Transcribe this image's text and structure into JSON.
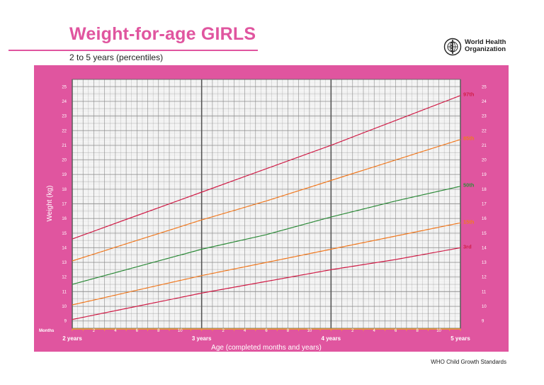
{
  "header": {
    "title": "Weight-for-age GIRLS",
    "subtitle": "2 to 5 years (percentiles)"
  },
  "logo": {
    "name": "World Health Organization",
    "icon": "who-emblem-icon"
  },
  "footer": {
    "text": "WHO Child Growth Standards"
  },
  "colors": {
    "frame": "#e0559f",
    "grid": "#8a8a8a",
    "orange_axis": "#f0a030",
    "p3": "#d01e48",
    "p15": "#f07a22",
    "p50": "#2e8b3a",
    "p85": "#f07a22",
    "p97": "#d01e48"
  },
  "chart_data": {
    "type": "line",
    "title": "Weight-for-age GIRLS",
    "subtitle": "2 to 5 years (percentiles)",
    "xlabel": "Age (completed months and years)",
    "ylabel": "Weight (kg)",
    "x_unit_label": "Months",
    "x_range_months": [
      24,
      60
    ],
    "ylim": [
      8.5,
      25.5
    ],
    "y_ticks": [
      9,
      10,
      11,
      12,
      13,
      14,
      15,
      16,
      17,
      18,
      19,
      20,
      21,
      22,
      23,
      24,
      25
    ],
    "x_major_ticks": [
      {
        "month": 24,
        "label": "2 years"
      },
      {
        "month": 36,
        "label": "3 years"
      },
      {
        "month": 48,
        "label": "4 years"
      },
      {
        "month": 60,
        "label": "5 years"
      }
    ],
    "x_minor_labels": [
      {
        "month": 26,
        "label": "2"
      },
      {
        "month": 28,
        "label": "4"
      },
      {
        "month": 30,
        "label": "6"
      },
      {
        "month": 32,
        "label": "8"
      },
      {
        "month": 34,
        "label": "10"
      },
      {
        "month": 38,
        "label": "2"
      },
      {
        "month": 40,
        "label": "4"
      },
      {
        "month": 42,
        "label": "6"
      },
      {
        "month": 44,
        "label": "8"
      },
      {
        "month": 46,
        "label": "10"
      },
      {
        "month": 50,
        "label": "2"
      },
      {
        "month": 52,
        "label": "4"
      },
      {
        "month": 54,
        "label": "6"
      },
      {
        "month": 56,
        "label": "8"
      },
      {
        "month": 58,
        "label": "10"
      }
    ],
    "grid": true,
    "legend": "labels-at-right-end",
    "series": [
      {
        "name": "97th",
        "color": "#d01e48",
        "x": [
          24,
          30,
          36,
          42,
          48,
          54,
          60
        ],
        "y": [
          14.6,
          16.2,
          17.8,
          19.4,
          21.0,
          22.7,
          24.4
        ]
      },
      {
        "name": "85th",
        "color": "#f07a22",
        "x": [
          24,
          30,
          36,
          42,
          48,
          54,
          60
        ],
        "y": [
          13.1,
          14.5,
          15.9,
          17.2,
          18.6,
          20.0,
          21.4
        ]
      },
      {
        "name": "50th",
        "color": "#2e8b3a",
        "x": [
          24,
          30,
          36,
          42,
          48,
          54,
          60
        ],
        "y": [
          11.5,
          12.7,
          13.9,
          14.9,
          16.1,
          17.2,
          18.2
        ]
      },
      {
        "name": "15th",
        "color": "#f07a22",
        "x": [
          24,
          30,
          36,
          42,
          48,
          54,
          60
        ],
        "y": [
          10.1,
          11.1,
          12.1,
          13.0,
          13.9,
          14.8,
          15.7
        ]
      },
      {
        "name": "3rd",
        "color": "#d01e48",
        "x": [
          24,
          30,
          36,
          42,
          48,
          54,
          60
        ],
        "y": [
          9.1,
          10.0,
          10.9,
          11.7,
          12.5,
          13.2,
          14.0
        ]
      }
    ]
  }
}
